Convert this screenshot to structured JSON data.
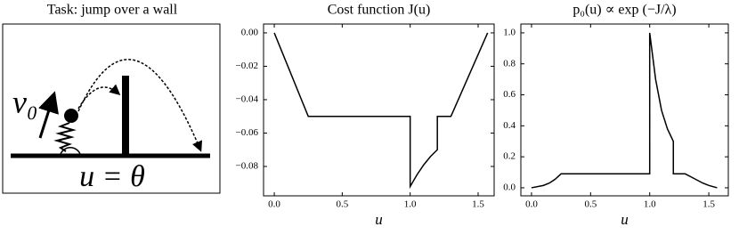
{
  "diagram": {
    "title": "Task: jump over a wall",
    "velocity_label": "v₀",
    "control_label": "u = θ"
  },
  "chart_data": [
    {
      "type": "line",
      "title": "Cost function J(u)",
      "xlabel": "u",
      "color": "#000000",
      "x": [
        0,
        0.25,
        1.0,
        1.0,
        1.05,
        1.1,
        1.15,
        1.2,
        1.2,
        1.3,
        1.57
      ],
      "values": [
        0,
        -0.05,
        -0.05,
        -0.092,
        -0.085,
        -0.079,
        -0.074,
        -0.07,
        -0.05,
        -0.05,
        0
      ],
      "xlim": [
        -0.079,
        1.618
      ],
      "ylim": [
        -0.0976,
        0.0053
      ],
      "xticks": [
        {
          "value": 0,
          "label": "0.0"
        },
        0.5,
        {
          "value": 1,
          "label": "1.0"
        },
        1.5
      ],
      "yticks": [
        {
          "value": 0,
          "label": "0.00"
        },
        {
          "value": -0.02,
          "label": "−0.02"
        },
        {
          "value": -0.04,
          "label": "−0.04"
        },
        {
          "value": -0.06,
          "label": "−0.06"
        },
        {
          "value": -0.08,
          "label": "−0.08"
        }
      ]
    },
    {
      "type": "line",
      "title": "p₀(u) ∝ exp (−J/λ)",
      "xlabel": "u",
      "color": "#000000",
      "x": [
        0,
        0.1,
        0.15,
        0.2,
        0.25,
        1.0,
        1.0,
        1.05,
        1.1,
        1.15,
        1.2,
        1.2,
        1.3,
        1.35,
        1.4,
        1.45,
        1.5,
        1.57
      ],
      "values": [
        0,
        0.015,
        0.03,
        0.055,
        0.09,
        0.09,
        1.0,
        0.7,
        0.5,
        0.38,
        0.3,
        0.09,
        0.09,
        0.07,
        0.05,
        0.03,
        0.015,
        0
      ],
      "xlim": [
        -0.09,
        1.665
      ],
      "ylim": [
        -0.052,
        1.057
      ],
      "xticks": [
        {
          "value": 0,
          "label": "0.0"
        },
        0.5,
        {
          "value": 1,
          "label": "1.0"
        },
        1.5
      ],
      "yticks": [
        {
          "value": 0,
          "label": "0.0"
        },
        0.2,
        0.4,
        0.6,
        0.8,
        {
          "value": 1,
          "label": "1.0"
        }
      ]
    }
  ]
}
